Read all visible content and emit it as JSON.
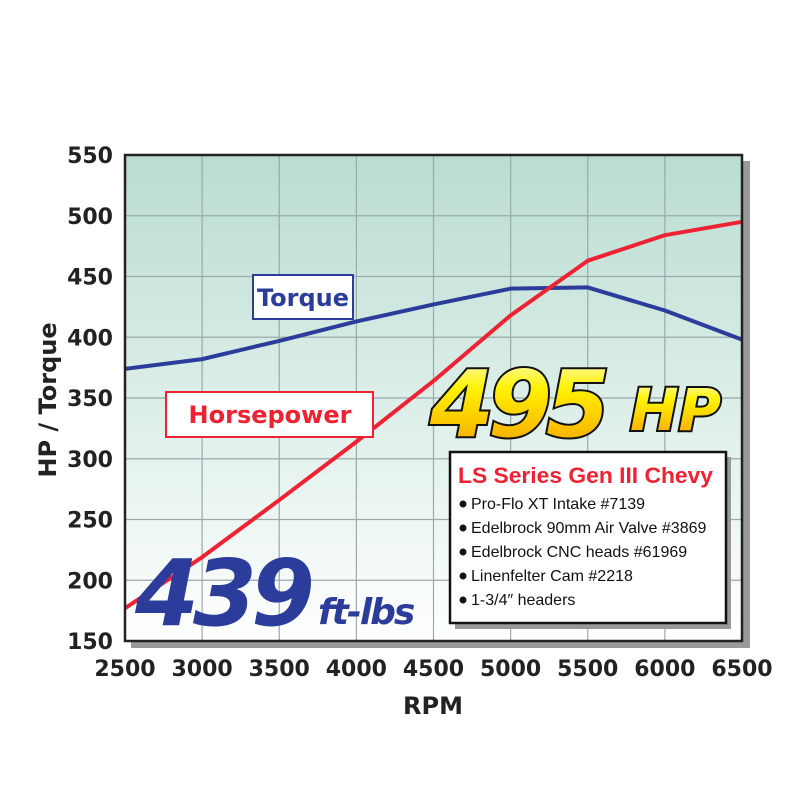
{
  "chart_data": {
    "type": "line",
    "xlabel": "RPM",
    "ylabel": "HP / Torque",
    "xlim": [
      2500,
      6500
    ],
    "ylim": [
      150,
      550
    ],
    "x": [
      2500,
      3000,
      3500,
      4000,
      4500,
      5000,
      5500,
      6000,
      6500
    ],
    "x_ticks": [
      "2500",
      "3000",
      "3500",
      "4000",
      "4500",
      "5000",
      "5500",
      "6000",
      "6500"
    ],
    "y_ticks": [
      "150",
      "200",
      "250",
      "300",
      "350",
      "400",
      "450",
      "500",
      "550"
    ],
    "grid": true,
    "series": [
      {
        "name": "Torque",
        "color": "#2b3c9a",
        "values": [
          374,
          382,
          397,
          413,
          427,
          440,
          441,
          422,
          398
        ]
      },
      {
        "name": "Horsepower",
        "color": "#ee2233",
        "values": [
          177,
          219,
          266,
          314,
          364,
          418,
          463,
          484,
          495
        ]
      }
    ],
    "annotations": {
      "hp_peak": {
        "number": "495",
        "unit": "HP"
      },
      "torque_peak": {
        "number": "439",
        "unit": "ft-lbs"
      },
      "spec_box": {
        "title": "LS Series Gen III Chevy",
        "items": [
          "Pro-Flo XT Intake #7139",
          "Edelbrock 90mm Air Valve #3869",
          "Edelbrock CNC heads #61969",
          "Linenfelter Cam #2218",
          "1-3/4″ headers"
        ]
      }
    },
    "background_gradient": [
      "#b9ddd0",
      "#ffffff"
    ]
  }
}
